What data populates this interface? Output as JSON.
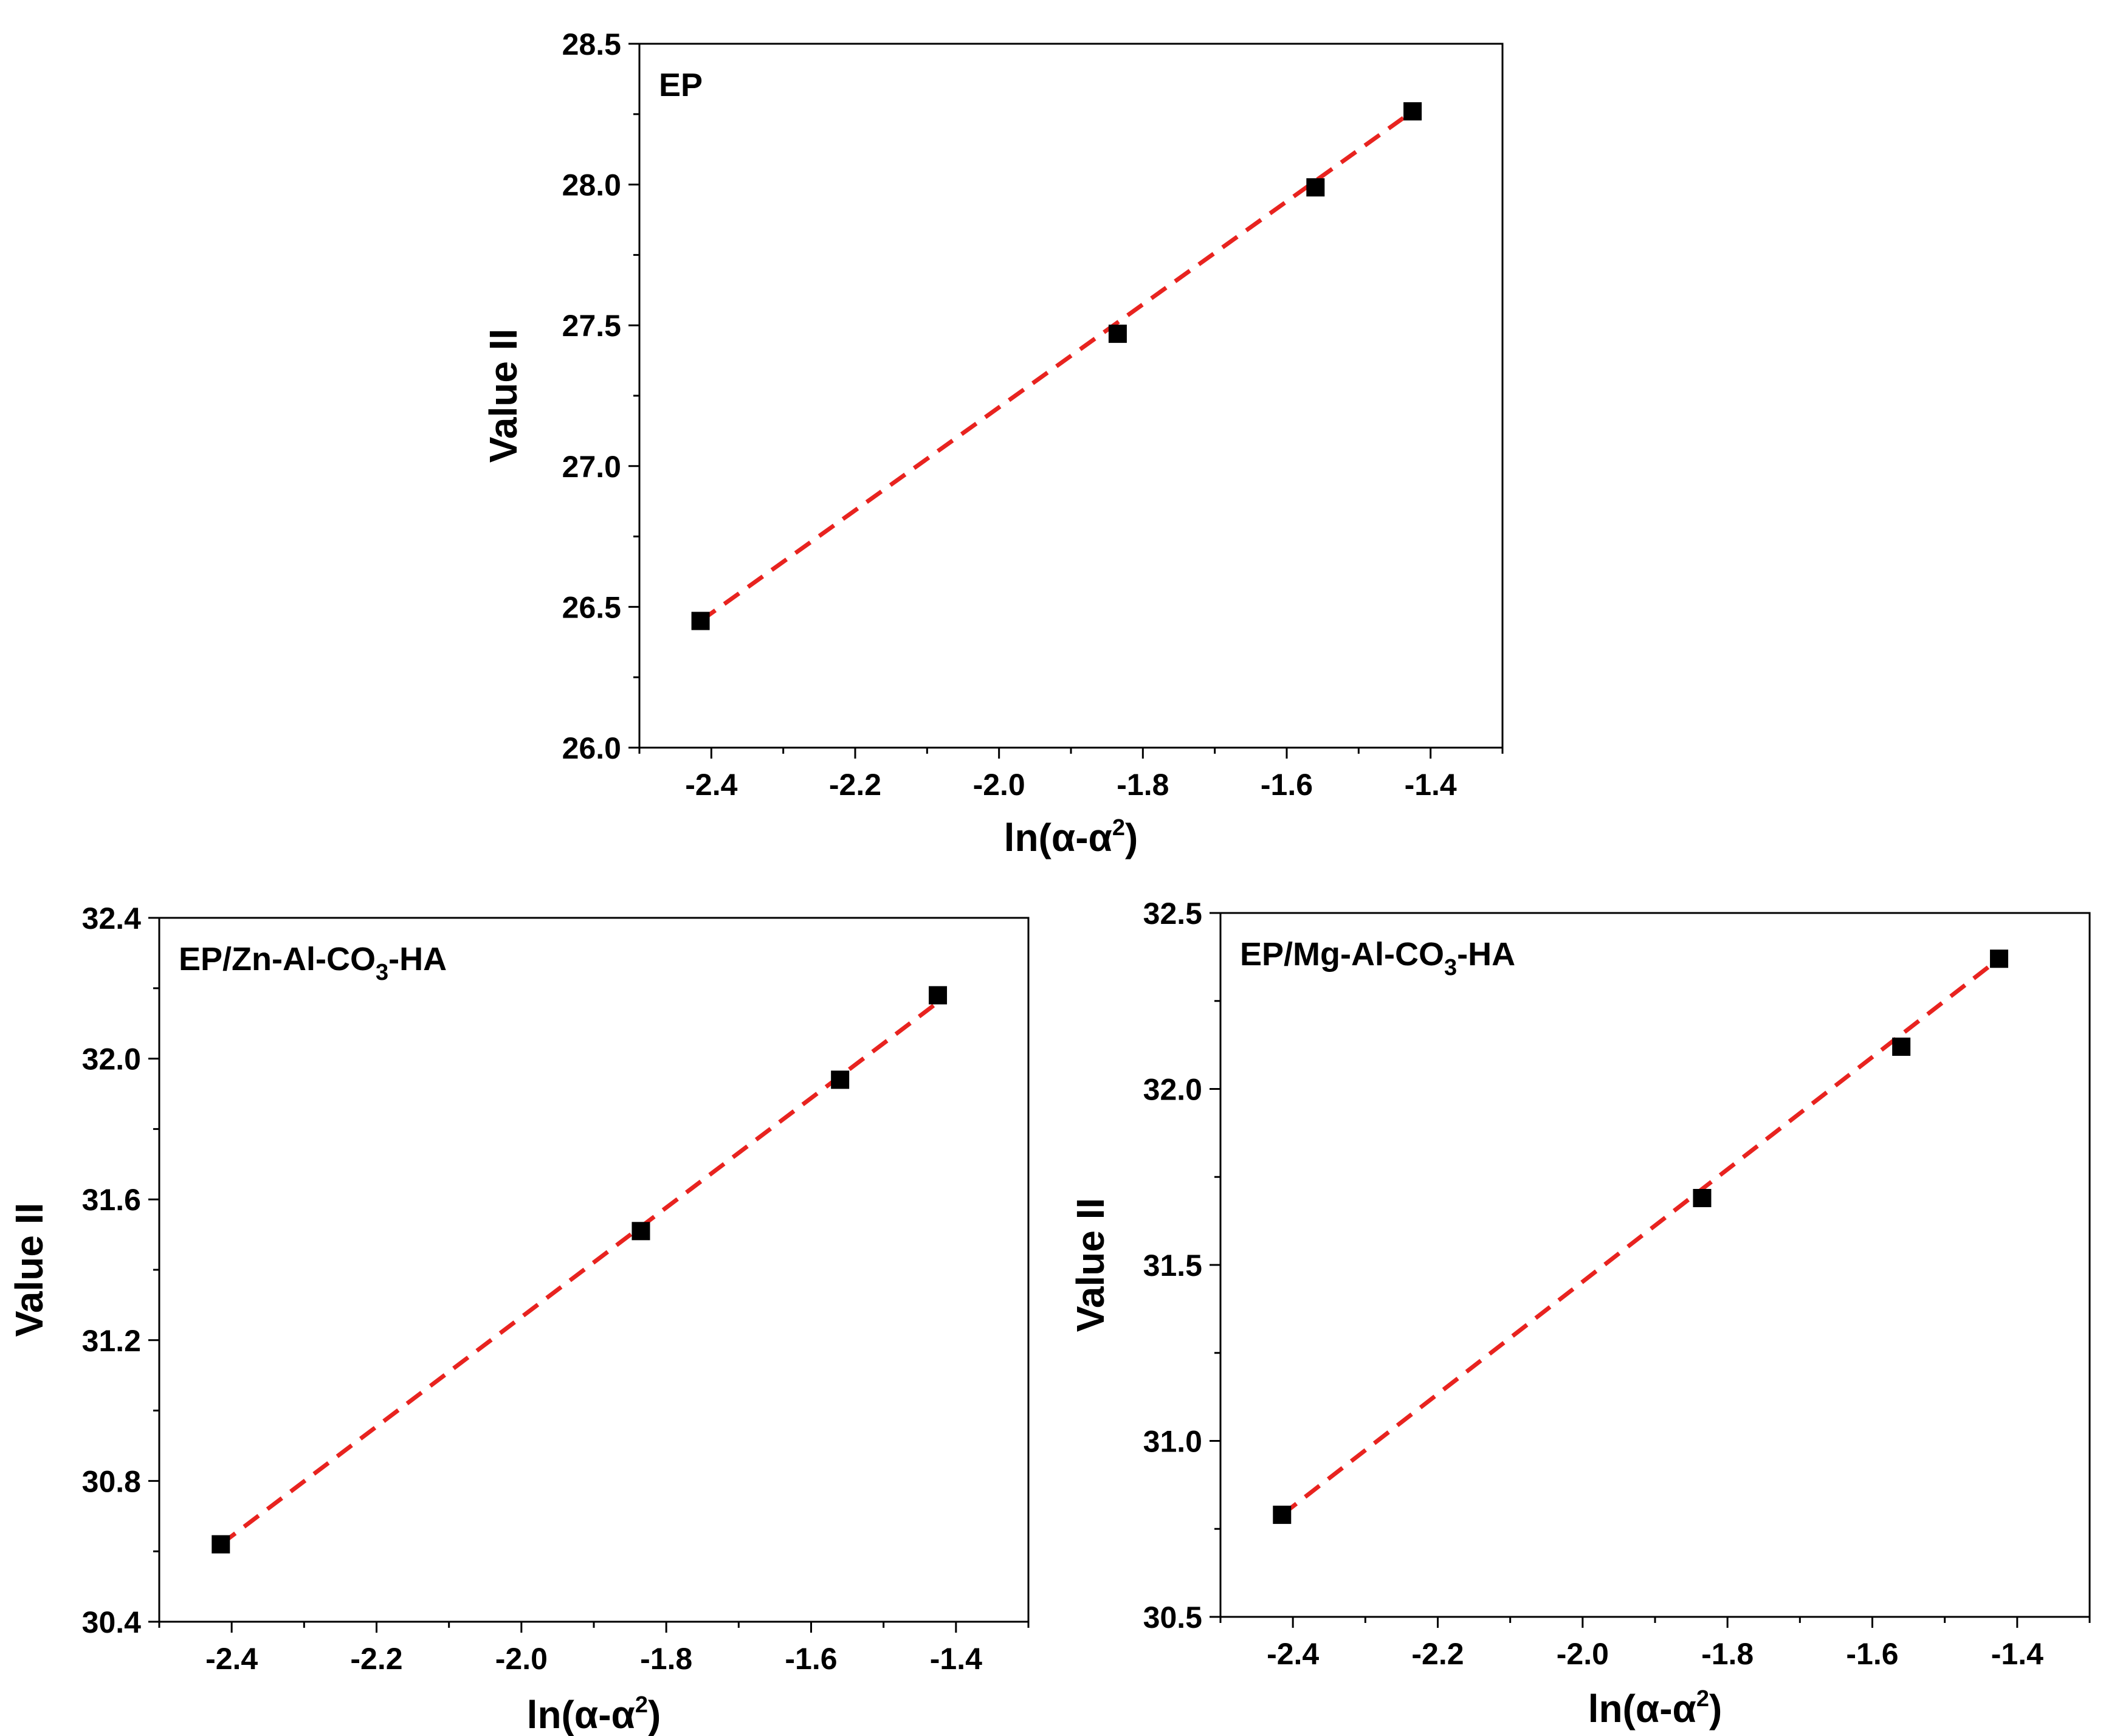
{
  "chart_data": [
    {
      "type": "scatter",
      "panel_label": {
        "main": "EP",
        "sub": "",
        "suffix": ""
      },
      "xlabel": {
        "prefix": "ln(α-α",
        "sup": "2",
        "suffix": ")"
      },
      "ylabel": "Value II",
      "xlim": [
        -2.5,
        -1.3
      ],
      "ylim": [
        26.0,
        28.5
      ],
      "xticks": [
        -2.4,
        -2.2,
        -2.0,
        -1.8,
        -1.6,
        -1.4
      ],
      "xtick_labels": [
        "-2.4",
        "-2.2",
        "-2.0",
        "-1.8",
        "-1.6",
        "-1.4"
      ],
      "yticks": [
        26.0,
        26.5,
        27.0,
        27.5,
        28.0,
        28.5
      ],
      "ytick_labels": [
        "26.0",
        "26.5",
        "27.0",
        "27.5",
        "28.0",
        "28.5"
      ],
      "y_minor_step": 0.25,
      "x": [
        -2.415,
        -1.835,
        -1.56,
        -1.425
      ],
      "y": [
        26.45,
        27.47,
        27.99,
        28.26
      ],
      "fit": {
        "x": [
          -2.415,
          -1.425
        ],
        "y": [
          26.45,
          28.26
        ],
        "color": "#e8231f",
        "style": "dashed"
      },
      "marker": {
        "shape": "square",
        "color": "#000000"
      }
    },
    {
      "type": "scatter",
      "panel_label": {
        "main": "EP/Zn-Al-CO",
        "sub": "3",
        "suffix": "-HA"
      },
      "xlabel": {
        "prefix": "ln(α-α",
        "sup": "2",
        "suffix": ")"
      },
      "ylabel": "Value II",
      "xlim": [
        -2.5,
        -1.3
      ],
      "ylim": [
        30.4,
        32.4
      ],
      "xticks": [
        -2.4,
        -2.2,
        -2.0,
        -1.8,
        -1.6,
        -1.4
      ],
      "xtick_labels": [
        "-2.4",
        "-2.2",
        "-2.0",
        "-1.8",
        "-1.6",
        "-1.4"
      ],
      "yticks": [
        30.4,
        30.8,
        31.2,
        31.6,
        32.0,
        32.4
      ],
      "ytick_labels": [
        "30.4",
        "30.8",
        "31.2",
        "31.6",
        "32.0",
        "32.4"
      ],
      "y_minor_step": 0.2,
      "x": [
        -2.415,
        -1.835,
        -1.56,
        -1.425
      ],
      "y": [
        30.62,
        31.51,
        31.94,
        32.18
      ],
      "fit": {
        "x": [
          -2.415,
          -1.425
        ],
        "y": [
          30.62,
          32.16
        ],
        "color": "#e8231f",
        "style": "dashed"
      },
      "marker": {
        "shape": "square",
        "color": "#000000"
      }
    },
    {
      "type": "scatter",
      "panel_label": {
        "main": "EP/Mg-Al-CO",
        "sub": "3",
        "suffix": "-HA"
      },
      "xlabel": {
        "prefix": "ln(α-α",
        "sup": "2",
        "suffix": ")"
      },
      "ylabel": "Value II",
      "xlim": [
        -2.5,
        -1.3
      ],
      "ylim": [
        30.5,
        32.5
      ],
      "xticks": [
        -2.4,
        -2.2,
        -2.0,
        -1.8,
        -1.6,
        -1.4
      ],
      "xtick_labels": [
        "-2.4",
        "-2.2",
        "-2.0",
        "-1.8",
        "-1.6",
        "-1.4"
      ],
      "yticks": [
        30.5,
        31.0,
        31.5,
        32.0,
        32.5
      ],
      "ytick_labels": [
        "30.5",
        "31.0",
        "31.5",
        "32.0",
        "32.5"
      ],
      "y_minor_step": 0.25,
      "x": [
        -2.415,
        -1.835,
        -1.56,
        -1.425
      ],
      "y": [
        30.79,
        31.69,
        32.12,
        32.37
      ],
      "fit": {
        "x": [
          -2.415,
          -1.425
        ],
        "y": [
          30.79,
          32.37
        ],
        "color": "#e8231f",
        "style": "dashed"
      },
      "marker": {
        "shape": "square",
        "color": "#000000"
      }
    }
  ]
}
